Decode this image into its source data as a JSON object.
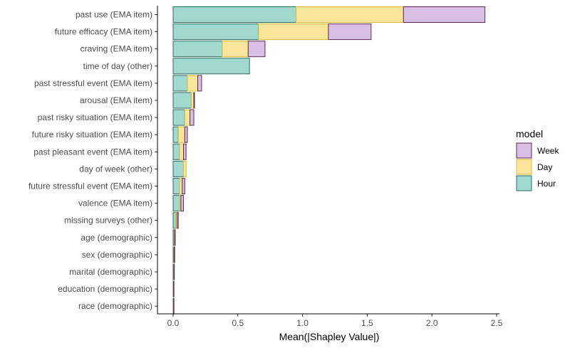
{
  "chart_data": {
    "type": "bar",
    "orientation": "horizontal",
    "stacked": true,
    "title": "",
    "xlabel": "Mean(|Shapley Value|)",
    "ylabel": "",
    "xlim": [
      0,
      2.5
    ],
    "xticks": [
      0.0,
      0.5,
      1.0,
      1.5,
      2.0,
      2.5
    ],
    "xtick_labels": [
      "0.0",
      "0.5",
      "1.0",
      "1.5",
      "2.0",
      "2.5"
    ],
    "grid": false,
    "legend_position": "right",
    "categories": [
      "past use (EMA item)",
      "future efficacy (EMA item)",
      "craving (EMA item)",
      "time of day (other)",
      "past stressful event (EMA item)",
      "arousal (EMA item)",
      "past risky situation (EMA item)",
      "future risky situation (EMA item)",
      "past pleasant event (EMA item)",
      "day of week (other)",
      "future stressful event (EMA item)",
      "valence (EMA item)",
      "missing surveys (other)",
      "age (demographic)",
      "sex (demographic)",
      "marital (demographic)",
      "education (demographic)",
      "race (demographic)"
    ],
    "series": [
      {
        "name": "Hour",
        "color": "#a1d9ce",
        "border": "#2d6b5e",
        "values": [
          0.95,
          0.66,
          0.38,
          0.59,
          0.11,
          0.14,
          0.09,
          0.04,
          0.05,
          0.08,
          0.05,
          0.05,
          0.02,
          0.008,
          0.006,
          0.004,
          0.002,
          0.002
        ]
      },
      {
        "name": "Day",
        "color": "#f9e69b",
        "border": "#d9b93a",
        "values": [
          0.83,
          0.54,
          0.2,
          0.0,
          0.08,
          0.02,
          0.04,
          0.05,
          0.03,
          0.02,
          0.02,
          0.01,
          0.01,
          0.004,
          0.003,
          0.002,
          0.001,
          0.001
        ]
      },
      {
        "name": "Week",
        "color": "#d9bfe3",
        "border": "#5a2a55",
        "values": [
          0.63,
          0.33,
          0.13,
          0.0,
          0.03,
          0.005,
          0.03,
          0.02,
          0.02,
          0.0,
          0.02,
          0.02,
          0.01,
          0.004,
          0.002,
          0.002,
          0.001,
          0.001
        ]
      }
    ],
    "legend": {
      "title": "model",
      "entries": [
        "Week",
        "Day",
        "Hour"
      ]
    }
  }
}
